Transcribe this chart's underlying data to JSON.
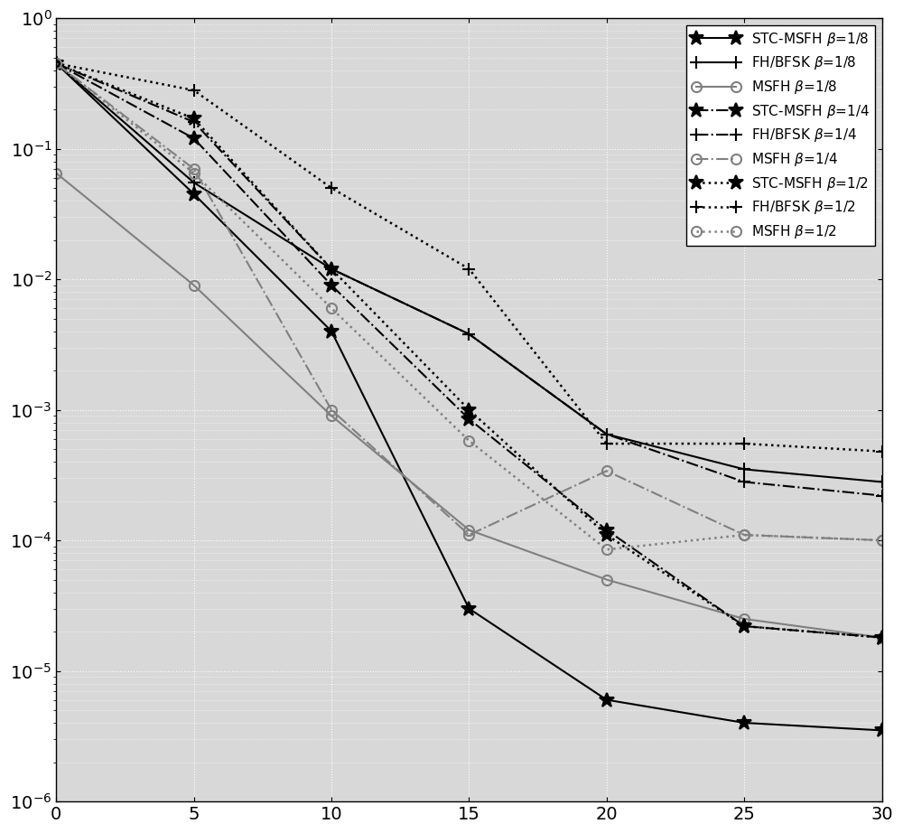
{
  "x": [
    0,
    5,
    10,
    15,
    20,
    25,
    30
  ],
  "series": [
    {
      "label": "STC-MSFH $\\beta$=1/8",
      "linestyle": "-",
      "marker": "*",
      "color": "#000000",
      "linewidth": 1.5,
      "markersize": 12,
      "y": [
        0.45,
        0.045,
        0.004,
        3e-05,
        6e-06,
        4e-06,
        3.5e-06
      ]
    },
    {
      "label": "FH/BFSK $\\beta$=1/8",
      "linestyle": "-",
      "marker": "+",
      "color": "#000000",
      "linewidth": 1.5,
      "markersize": 10,
      "y": [
        0.45,
        0.055,
        0.012,
        0.0038,
        0.00065,
        0.00035,
        0.00028
      ]
    },
    {
      "label": "MSFH $\\beta$=1/8",
      "linestyle": "-",
      "marker": "o",
      "color": "#808080",
      "linewidth": 1.5,
      "markersize": 8,
      "y": [
        0.065,
        0.009,
        0.0009,
        0.00012,
        5e-05,
        2.5e-05,
        1.8e-05
      ]
    },
    {
      "label": "STC-MSFH $\\beta$=1/4",
      "linestyle": "-.",
      "marker": "*",
      "color": "#000000",
      "linewidth": 1.5,
      "markersize": 12,
      "y": [
        0.45,
        0.12,
        0.009,
        0.00085,
        0.00012,
        2.2e-05,
        1.8e-05
      ]
    },
    {
      "label": "FH/BFSK $\\beta$=1/4",
      "linestyle": "-.",
      "marker": "+",
      "color": "#000000",
      "linewidth": 1.5,
      "markersize": 10,
      "y": [
        0.45,
        0.16,
        0.012,
        0.0038,
        0.00065,
        0.00028,
        0.00022
      ]
    },
    {
      "label": "MSFH $\\beta$=1/4",
      "linestyle": "-.",
      "marker": "o",
      "color": "#808080",
      "linewidth": 1.5,
      "markersize": 8,
      "y": [
        0.45,
        0.07,
        0.001,
        0.00011,
        0.00034,
        0.00011,
        0.0001
      ]
    },
    {
      "label": "STC-MSFH $\\beta$=1/2",
      "linestyle": ":",
      "marker": "*",
      "color": "#000000",
      "linewidth": 1.8,
      "markersize": 12,
      "y": [
        0.45,
        0.17,
        0.012,
        0.001,
        0.00011,
        2.2e-05,
        1.8e-05
      ]
    },
    {
      "label": "FH/BFSK $\\beta$=1/2",
      "linestyle": ":",
      "marker": "+",
      "color": "#000000",
      "linewidth": 1.8,
      "markersize": 10,
      "y": [
        0.45,
        0.28,
        0.05,
        0.012,
        0.00055,
        0.00055,
        0.00048
      ]
    },
    {
      "label": "MSFH $\\beta$=1/2",
      "linestyle": ":",
      "marker": "o",
      "color": "#808080",
      "linewidth": 1.8,
      "markersize": 8,
      "y": [
        0.45,
        0.065,
        0.006,
        0.00058,
        8.5e-05,
        0.00011,
        0.0001
      ]
    }
  ],
  "xlim": [
    0,
    30
  ],
  "ylim": [
    1e-06,
    1.0
  ],
  "xticks": [
    0,
    5,
    10,
    15,
    20,
    25,
    30
  ],
  "ax_facecolor": "#d8d8d8",
  "bg_color": "#ffffff",
  "grid_color": "#ffffff",
  "legend_fontsize": 11,
  "tick_fontsize": 14
}
